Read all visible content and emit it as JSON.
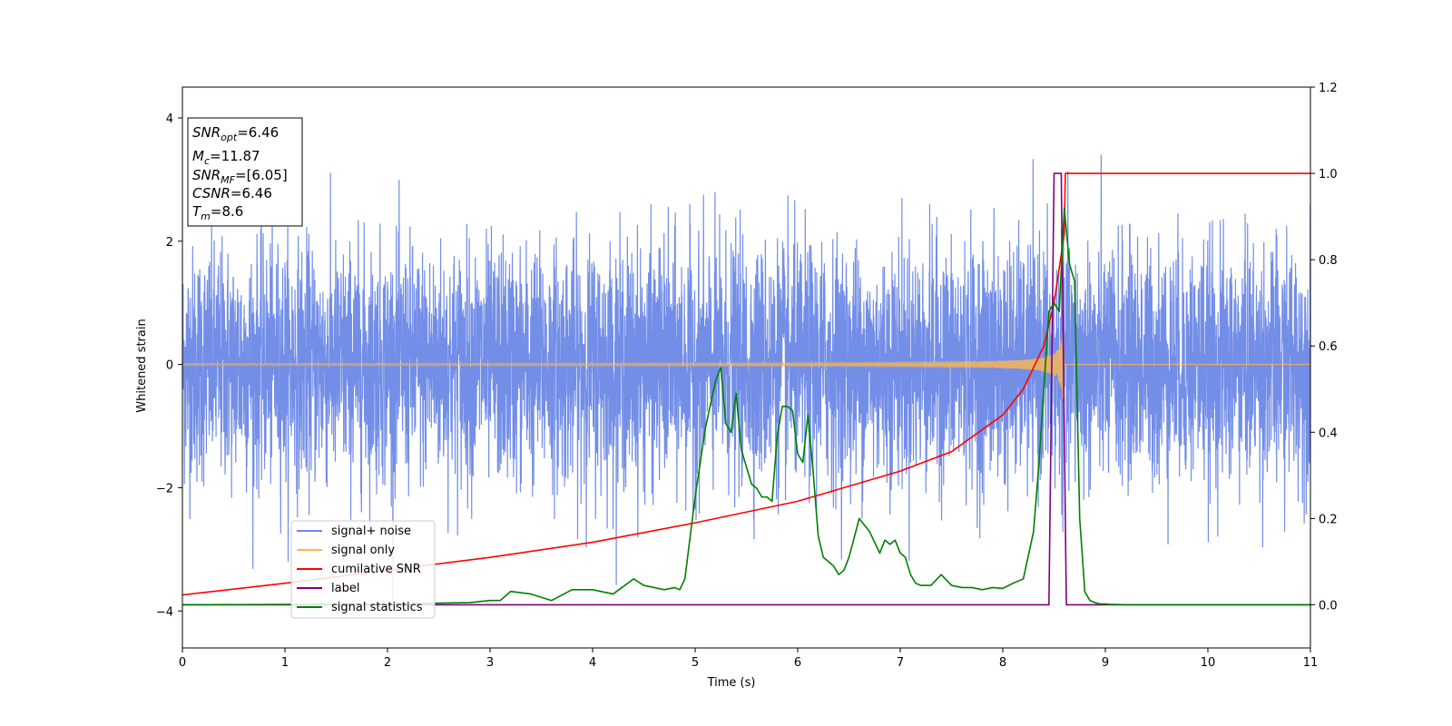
{
  "chart_data": {
    "type": "line",
    "title": "",
    "xlabel": "Time (s)",
    "ylabel": "Whitened strain",
    "xlim": [
      0,
      11
    ],
    "ylim": [
      -4.6,
      4.5
    ],
    "y2lim": [
      -0.1,
      1.2
    ],
    "x_ticks": [
      "0",
      "1",
      "2",
      "3",
      "4",
      "5",
      "6",
      "7",
      "8",
      "9",
      "10",
      "11"
    ],
    "y_ticks": [
      "4",
      "2",
      "0",
      "−2",
      "−4"
    ],
    "y_tick_values": [
      4,
      2,
      0,
      -2,
      -4
    ],
    "y2_ticks": [
      "1.2",
      "1.0",
      "0.8",
      "0.6",
      "0.4",
      "0.2",
      "0.0"
    ],
    "y2_tick_values": [
      1.2,
      1.0,
      0.8,
      0.6,
      0.4,
      0.2,
      0.0
    ],
    "grid": false,
    "legend_position": "lower-left",
    "info_box": {
      "snr_opt": {
        "main": "SNR",
        "sub": "opt",
        "value": "=6.46"
      },
      "mc": {
        "main": "M",
        "sub": "c",
        "value": "=11.87"
      },
      "snr_mf": {
        "main": "SNR",
        "sub": "MF",
        "value": "=[6.05]"
      },
      "csnr": {
        "main": "CSNR",
        "value": "=6.46"
      },
      "tm": {
        "main": "T",
        "sub": "m",
        "value": "=8.6"
      }
    },
    "series": [
      {
        "name": "signal+ noise",
        "color": "#6b88e6",
        "axis": "left",
        "noise_sigma": 1.0
      },
      {
        "name": "signal only",
        "color": "#ffb84d",
        "axis": "left",
        "merger_time": 8.6
      },
      {
        "name": "cumilative SNR",
        "color": "#ff0000",
        "axis": "right",
        "x": [
          0,
          1,
          2,
          3,
          4,
          5,
          6,
          7,
          7.5,
          8,
          8.2,
          8.4,
          8.5,
          8.6,
          8.61,
          11
        ],
        "y": [
          0.023,
          0.05,
          0.08,
          0.11,
          0.145,
          0.19,
          0.24,
          0.31,
          0.355,
          0.44,
          0.5,
          0.6,
          0.7,
          0.86,
          1.0,
          1.0
        ]
      },
      {
        "name": "label",
        "color": "#800080",
        "axis": "right",
        "x": [
          0,
          8.45,
          8.5,
          8.57,
          8.62,
          11
        ],
        "y": [
          0,
          0,
          1,
          1,
          0,
          0
        ]
      },
      {
        "name": "signal statistics",
        "color": "#008000",
        "axis": "right",
        "x": [
          0,
          1,
          2,
          2.8,
          3.0,
          3.1,
          3.2,
          3.4,
          3.6,
          3.8,
          4.0,
          4.2,
          4.4,
          4.5,
          4.6,
          4.7,
          4.8,
          4.85,
          4.9,
          5.0,
          5.1,
          5.2,
          5.25,
          5.3,
          5.35,
          5.4,
          5.45,
          5.5,
          5.55,
          5.6,
          5.65,
          5.7,
          5.75,
          5.8,
          5.85,
          5.9,
          5.95,
          6.0,
          6.05,
          6.1,
          6.15,
          6.2,
          6.25,
          6.3,
          6.35,
          6.4,
          6.45,
          6.5,
          6.6,
          6.7,
          6.8,
          6.85,
          6.9,
          6.95,
          7.0,
          7.05,
          7.1,
          7.15,
          7.2,
          7.3,
          7.4,
          7.5,
          7.6,
          7.7,
          7.8,
          7.9,
          8.0,
          8.1,
          8.2,
          8.3,
          8.35,
          8.4,
          8.45,
          8.5,
          8.55,
          8.6,
          8.65,
          8.7,
          8.75,
          8.8,
          8.85,
          8.9,
          8.95,
          9.0,
          9.05,
          9.1,
          9.2,
          9.4,
          11
        ],
        "y": [
          0.0,
          0.001,
          0.002,
          0.005,
          0.01,
          0.01,
          0.031,
          0.025,
          0.01,
          0.035,
          0.035,
          0.025,
          0.06,
          0.045,
          0.04,
          0.035,
          0.04,
          0.035,
          0.06,
          0.25,
          0.41,
          0.52,
          0.55,
          0.42,
          0.4,
          0.49,
          0.36,
          0.32,
          0.28,
          0.27,
          0.25,
          0.25,
          0.24,
          0.39,
          0.46,
          0.46,
          0.45,
          0.35,
          0.33,
          0.44,
          0.31,
          0.16,
          0.11,
          0.1,
          0.09,
          0.07,
          0.08,
          0.11,
          0.2,
          0.17,
          0.12,
          0.15,
          0.14,
          0.15,
          0.12,
          0.11,
          0.07,
          0.05,
          0.045,
          0.045,
          0.07,
          0.045,
          0.04,
          0.04,
          0.035,
          0.04,
          0.038,
          0.05,
          0.06,
          0.17,
          0.32,
          0.5,
          0.68,
          0.7,
          0.68,
          0.92,
          0.79,
          0.75,
          0.2,
          0.03,
          0.01,
          0.005,
          0.002,
          0.002,
          0.001,
          0.001,
          0.0,
          0.0,
          0.0
        ]
      }
    ]
  }
}
